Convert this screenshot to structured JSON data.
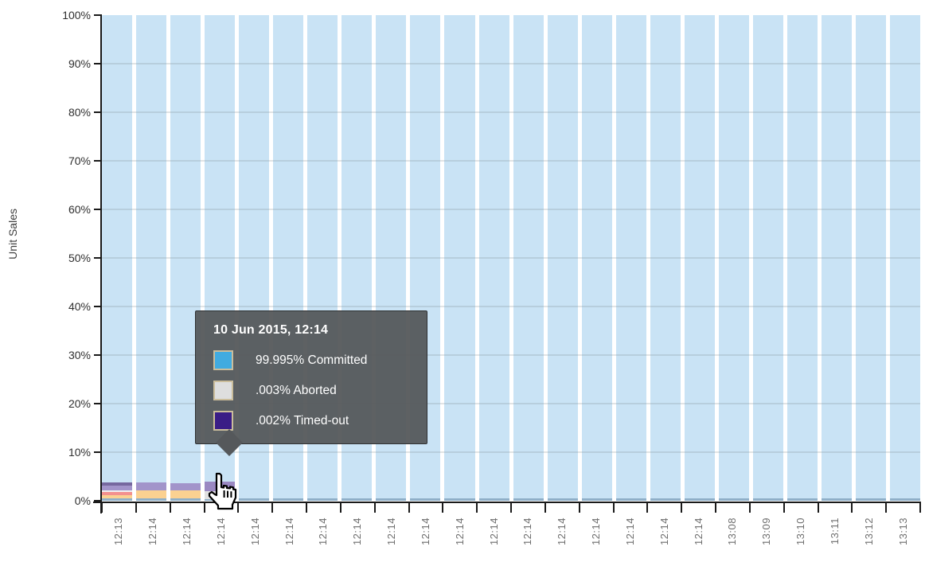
{
  "chart_data": {
    "type": "bar",
    "stacked": true,
    "title": "",
    "xlabel": "",
    "ylabel": "Unit Sales",
    "ylim": [
      0,
      100
    ],
    "grid": "horizontal",
    "y_tick_labels_top_to_bottom": [
      "100%",
      "90%",
      "80%",
      "70%",
      "60%",
      "50%",
      "40%",
      "30%",
      "20%",
      "10%",
      "0%"
    ],
    "x_tick_labels": [
      "12:13",
      "12:14",
      "12:14",
      "12:14",
      "12:14",
      "12:14",
      "12:14",
      "12:14",
      "12:14",
      "12:14",
      "12:14",
      "12:14",
      "12:14",
      "12:14",
      "12:14",
      "12:14",
      "12:14",
      "12:14",
      "13:08",
      "13:09",
      "13:10",
      "13:11",
      "13:12",
      "13:13"
    ],
    "legend": [
      {
        "name": "Committed",
        "color": "#41abe0"
      },
      {
        "name": "Aborted",
        "color": "#dedede"
      },
      {
        "name": "Timed-out",
        "color": "#3a1d86"
      }
    ],
    "hovered_bar": {
      "index": 3,
      "label": "12:14",
      "values": {
        "Committed": 99.995,
        "Aborted": 0.003,
        "Timed-out": 0.002
      }
    },
    "bars": [
      {
        "label": "12:13",
        "segments": [
          {
            "c": "base",
            "v": 0.5
          },
          {
            "c": "orange",
            "v": 0.65
          },
          {
            "c": "salmon",
            "v": 0.65
          },
          {
            "c": "pale",
            "v": 0.35
          },
          {
            "c": "lavender",
            "v": 1.0
          },
          {
            "c": "darkPurple",
            "v": 0.65
          }
        ]
      },
      {
        "label": "12:14",
        "segments": [
          {
            "c": "base",
            "v": 0.45
          },
          {
            "c": "orange",
            "v": 1.75
          },
          {
            "c": "lavender",
            "v": 1.5
          }
        ]
      },
      {
        "label": "12:14",
        "segments": [
          {
            "c": "base",
            "v": 0.45
          },
          {
            "c": "orange",
            "v": 1.75
          },
          {
            "c": "lavender",
            "v": 1.45
          }
        ]
      },
      {
        "label": "12:14",
        "hovered": true,
        "segments": [
          {
            "c": "base",
            "v": 0.4
          },
          {
            "c": "hoverGray",
            "v": 1.6
          },
          {
            "c": "hoverLavender",
            "v": 2.0
          }
        ]
      },
      {
        "label": "12:14",
        "segments": [
          {
            "c": "base",
            "v": 0.45
          }
        ]
      },
      {
        "label": "12:14",
        "segments": [
          {
            "c": "base",
            "v": 0.45
          }
        ]
      },
      {
        "label": "12:14",
        "segments": [
          {
            "c": "base",
            "v": 0.45
          }
        ]
      },
      {
        "label": "12:14",
        "segments": [
          {
            "c": "base",
            "v": 0.45
          }
        ]
      },
      {
        "label": "12:14",
        "segments": [
          {
            "c": "base",
            "v": 0.45
          }
        ]
      },
      {
        "label": "12:14",
        "segments": [
          {
            "c": "base",
            "v": 0.45
          }
        ]
      },
      {
        "label": "12:14",
        "segments": [
          {
            "c": "base",
            "v": 0.45
          }
        ]
      },
      {
        "label": "12:14",
        "segments": [
          {
            "c": "base",
            "v": 0.45
          }
        ]
      },
      {
        "label": "12:14",
        "segments": [
          {
            "c": "base",
            "v": 0.45
          }
        ]
      },
      {
        "label": "12:14",
        "segments": [
          {
            "c": "base",
            "v": 0.45
          }
        ]
      },
      {
        "label": "12:14",
        "segments": [
          {
            "c": "base",
            "v": 0.45
          }
        ]
      },
      {
        "label": "12:14",
        "segments": [
          {
            "c": "base",
            "v": 0.45
          }
        ]
      },
      {
        "label": "12:14",
        "segments": [
          {
            "c": "base",
            "v": 0.45
          }
        ]
      },
      {
        "label": "12:14",
        "segments": [
          {
            "c": "base",
            "v": 0.45
          }
        ]
      },
      {
        "label": "13:08",
        "segments": [
          {
            "c": "base",
            "v": 0.45
          }
        ]
      },
      {
        "label": "13:09",
        "segments": [
          {
            "c": "base",
            "v": 0.45
          }
        ]
      },
      {
        "label": "13:10",
        "segments": [
          {
            "c": "base",
            "v": 0.45
          }
        ]
      },
      {
        "label": "13:11",
        "segments": [
          {
            "c": "base",
            "v": 0.45
          }
        ]
      },
      {
        "label": "13:12",
        "segments": [
          {
            "c": "base",
            "v": 0.45
          }
        ]
      },
      {
        "label": "13:13",
        "segments": [
          {
            "c": "base",
            "v": 0.45
          }
        ]
      }
    ]
  },
  "tooltip": {
    "title": "10 Jun 2015, 12:14",
    "rows": [
      {
        "label": "99.995% Committed",
        "color": "#41abe0"
      },
      {
        "label": ".003% Aborted",
        "color": "#dedede"
      },
      {
        "label": ".002% Timed-out",
        "color": "#3a1d86"
      }
    ]
  },
  "colors": {
    "fill": "#c9e3f5",
    "base": "#8fafc8",
    "orange": "#fbd191",
    "salmon": "#f3908e",
    "pale": "#f0f0f0",
    "lavender": "#a294ca",
    "darkPurple": "#76689f",
    "hoverGray": "#e0e0e0",
    "hoverLavender": "#9a88c2",
    "axis": "#1a1a1a",
    "gridline": "rgba(120,130,138,0.22)",
    "tooltip_bg": "rgba(85,88,91,0.95)",
    "swatch_border": "#cbbd9b"
  }
}
